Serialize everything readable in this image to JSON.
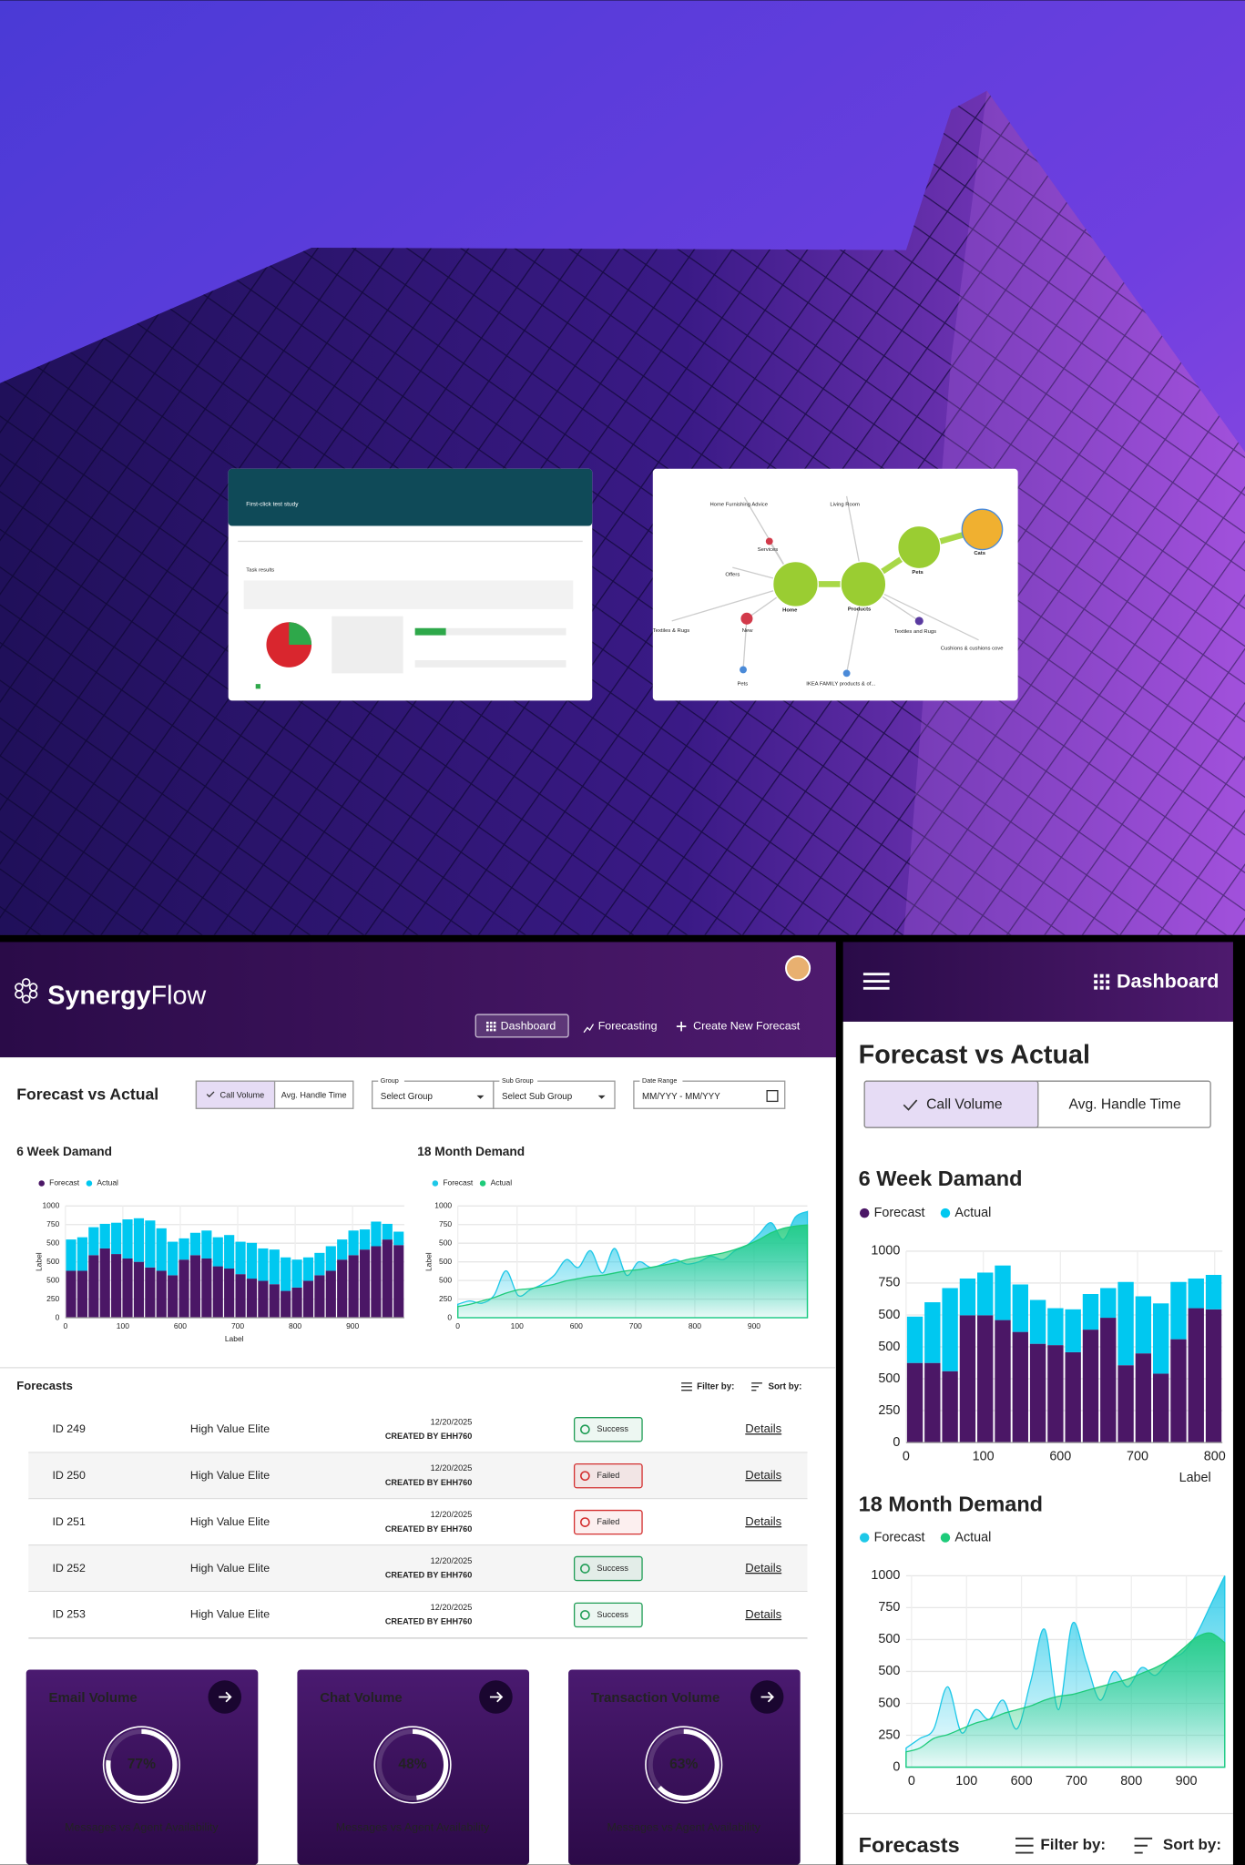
{
  "thumbnails": {
    "study": {
      "title": "First-click test study",
      "section": "Task results"
    },
    "sitemap": {
      "labels": [
        "Home Furnishing Advice",
        "Living Room",
        "Services",
        "Offers",
        "Cats",
        "Pets",
        "Home",
        "Products",
        "Textiles & Rugs",
        "New",
        "Textiles and Rugs",
        "Cushions & cushions cove",
        "Pets",
        "IKEA FAMILY products & of..."
      ]
    }
  },
  "desktop": {
    "brand": {
      "bold": "Synergy",
      "light": "Flow"
    },
    "nav": [
      "Dashboard",
      "Forecasting",
      "Create New Forecast"
    ],
    "title": "Forecast vs Actual",
    "toggle": [
      "Call Volume",
      "Avg. Handle Time"
    ],
    "filters": [
      {
        "label": "Group",
        "placeholder": "Select Group"
      },
      {
        "label": "Sub Group",
        "placeholder": "Select Sub Group"
      },
      {
        "label": "Date Range",
        "placeholder": "MM/YYY - MM/YYY"
      }
    ],
    "charts": [
      {
        "type": "bar",
        "title": "6 Week Damand",
        "xlabel": "Label",
        "ylabel": "Label",
        "grid": true,
        "xlim": [
          0,
          5.9
        ],
        "xticks": [
          0,
          {
            "value": 1,
            "label": "100"
          },
          {
            "value": 2,
            "label": "600"
          },
          {
            "value": 3,
            "label": "700"
          },
          {
            "value": 4,
            "label": "800"
          },
          {
            "value": 5,
            "label": "900"
          }
        ],
        "ylim": [
          0,
          1000
        ],
        "yticks": [
          0,
          {
            "value": 166.7,
            "label": "250"
          },
          {
            "value": 333.3,
            "label": "500"
          },
          500,
          {
            "value": 666.7,
            "label": "500"
          },
          {
            "value": 833.3,
            "label": "750"
          },
          1000
        ],
        "series": [
          {
            "name": "Forecast",
            "color": "#4b1766",
            "values": [
              420,
              420,
              560,
              620,
              570,
              530,
              500,
              450,
              420,
              380,
              520,
              560,
              530,
              460,
              440,
              390,
              350,
              330,
              300,
              240,
              270,
              330,
              380,
              420,
              520,
              560,
              610,
              640,
              700,
              650
            ]
          },
          {
            "name": "Actual",
            "color": "#00c8f0",
            "values": [
              280,
              300,
              250,
              220,
              280,
              350,
              390,
              420,
              380,
              300,
              190,
              200,
              250,
              260,
              300,
              290,
              320,
              290,
              310,
              300,
              250,
              210,
              200,
              220,
              180,
              220,
              180,
              220,
              140,
              120
            ]
          }
        ]
      },
      {
        "type": "area",
        "title": "18 Month Demand",
        "ylabel": "Label",
        "grid": true,
        "xlim": [
          0,
          5.9
        ],
        "xticks": [
          0,
          {
            "value": 1,
            "label": "100"
          },
          {
            "value": 2,
            "label": "600"
          },
          {
            "value": 3,
            "label": "700"
          },
          {
            "value": 4,
            "label": "800"
          },
          {
            "value": 5,
            "label": "900"
          }
        ],
        "ylim": [
          0,
          1000
        ],
        "yticks": [
          0,
          {
            "value": 166.7,
            "label": "250"
          },
          {
            "value": 333.3,
            "label": "500"
          },
          500,
          {
            "value": 666.7,
            "label": "500"
          },
          {
            "value": 833.3,
            "label": "750"
          },
          1000
        ],
        "series": [
          {
            "name": "Forecast",
            "color": "#1ec8e8",
            "values": [
              120,
              150,
              130,
              200,
              420,
              200,
              250,
              300,
              380,
              520,
              450,
              600,
              400,
              620,
              380,
              500,
              450,
              480,
              520,
              480,
              500,
              550,
              520,
              600,
              650,
              750,
              850,
              700,
              900,
              950
            ]
          },
          {
            "name": "Actual",
            "color": "#1ecb7a",
            "values": [
              100,
              120,
              150,
              180,
              220,
              250,
              260,
              280,
              300,
              330,
              350,
              370,
              380,
              400,
              420,
              430,
              450,
              470,
              490,
              520,
              540,
              560,
              580,
              610,
              650,
              700,
              760,
              800,
              820,
              830
            ]
          }
        ]
      }
    ],
    "forecasts": {
      "title": "Forecasts",
      "filter": "Filter by:",
      "sort": "Sort by:",
      "rows": [
        {
          "id": "ID 249",
          "name": "High Value Elite",
          "date": "12/20/2025",
          "creator": "CREATED BY EHH760",
          "status": "Success",
          "status_color": "#1f9d55",
          "link": "Details"
        },
        {
          "id": "ID 250",
          "name": "High Value Elite",
          "date": "12/20/2025",
          "creator": "CREATED BY EHH760",
          "status": "Failed",
          "status_color": "#d32f2f",
          "link": "Details"
        },
        {
          "id": "ID 251",
          "name": "High Value Elite",
          "date": "12/20/2025",
          "creator": "CREATED BY EHH760",
          "status": "Failed",
          "status_color": "#d32f2f",
          "link": "Details"
        },
        {
          "id": "ID 252",
          "name": "High Value Elite",
          "date": "12/20/2025",
          "creator": "CREATED BY EHH760",
          "status": "Success",
          "status_color": "#1f9d55",
          "link": "Details"
        },
        {
          "id": "ID 253",
          "name": "High Value Elite",
          "date": "12/20/2025",
          "creator": "CREATED BY EHH760",
          "status": "Success",
          "status_color": "#1f9d55",
          "link": "Details"
        }
      ]
    },
    "cards": [
      {
        "title": "Email Volume",
        "value": 77,
        "value_label": "77%",
        "caption": "Messages vs Agent Availability"
      },
      {
        "title": "Chat Volume",
        "value": 48,
        "value_label": "48%",
        "caption": "Messages vs Agent Availability"
      },
      {
        "title": "Transaction Volume",
        "value": 63,
        "value_label": "63%",
        "caption": "Messages vs Agent Availability"
      }
    ]
  },
  "mobile": {
    "nav": "Dashboard",
    "title": "Forecast vs Actual",
    "toggle": [
      "Call Volume",
      "Avg. Handle Time"
    ],
    "charts": [
      {
        "type": "bar",
        "title": "6 Week Damand",
        "xlabel": "Label",
        "grid": true,
        "xlim": [
          0,
          4.1
        ],
        "xticks": [
          0,
          {
            "value": 1,
            "label": "100"
          },
          {
            "value": 2,
            "label": "600"
          },
          {
            "value": 3,
            "label": "700"
          },
          {
            "value": 4,
            "label": "800"
          }
        ],
        "ylim": [
          0,
          1000
        ],
        "yticks": [
          0,
          {
            "value": 166.7,
            "label": "250"
          },
          {
            "value": 333.3,
            "label": "500"
          },
          500,
          {
            "value": 666.7,
            "label": "500"
          },
          {
            "value": 833.3,
            "label": "750"
          },
          1000
        ],
        "series": [
          {
            "name": "Forecast",
            "color": "#4b1766",
            "values": [
              416,
              416,
              373,
              665,
              665,
              640,
              578,
              516,
              509,
              472,
              590,
              652,
              404,
              466,
              360,
              540,
              702,
              696
            ]
          },
          {
            "name": "Actual",
            "color": "#00c8f0",
            "values": [
              242,
              317,
              434,
              192,
              223,
              285,
              248,
              229,
              193,
              224,
              186,
              155,
              435,
              298,
              367,
              299,
              155,
              180
            ]
          }
        ]
      },
      {
        "type": "area",
        "title": "18 Month Demand",
        "grid": true,
        "xlim": [
          -0.1,
          5.7
        ],
        "xticks": [
          0,
          {
            "value": 1,
            "label": "100"
          },
          {
            "value": 2,
            "label": "600"
          },
          {
            "value": 3,
            "label": "700"
          },
          {
            "value": 4,
            "label": "800"
          },
          {
            "value": 5,
            "label": "900"
          }
        ],
        "ylim": [
          0,
          1000
        ],
        "yticks": [
          0,
          {
            "value": 166.7,
            "label": "250"
          },
          {
            "value": 333.3,
            "label": "500"
          },
          500,
          {
            "value": 666.7,
            "label": "500"
          },
          {
            "value": 833.3,
            "label": "750"
          },
          1000
        ],
        "series": [
          {
            "name": "Forecast",
            "color": "#1ec8e8",
            "values": [
              100,
              150,
              200,
              420,
              180,
              300,
              250,
              350,
              200,
              450,
              720,
              300,
              750,
              550,
              350,
              500,
              420,
              520,
              480,
              560,
              600,
              700,
              850,
              1000
            ]
          },
          {
            "name": "Actual",
            "color": "#1ecb7a",
            "values": [
              80,
              100,
              150,
              170,
              200,
              230,
              250,
              280,
              300,
              320,
              350,
              370,
              380,
              400,
              420,
              440,
              460,
              490,
              520,
              560,
              620,
              680,
              700,
              650
            ]
          }
        ]
      }
    ],
    "forecasts": {
      "title": "Forecasts",
      "filter": "Filter by:",
      "sort": "Sort by:"
    }
  }
}
